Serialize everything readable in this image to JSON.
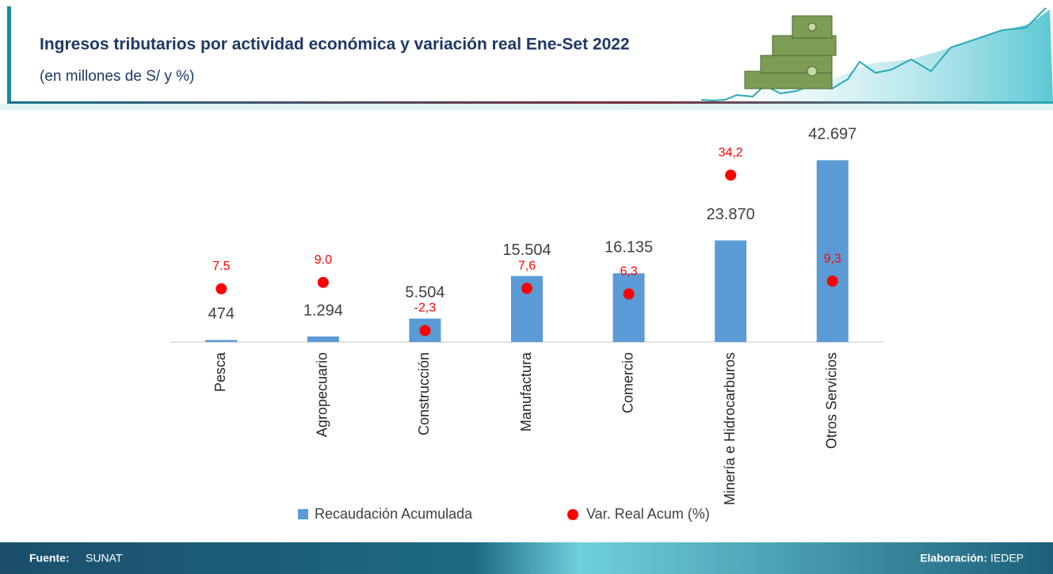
{
  "header": {
    "title": "Ingresos tributarios por actividad económica y variación real  Ene-Set 2022",
    "subtitle": "(en millones de S/ y %)"
  },
  "chart_data": {
    "type": "combo",
    "categories": [
      "Pesca",
      "Agropecuario",
      "Construcción",
      "Manufactura",
      "Comercio",
      "Minería e Hidrocarburos",
      "Otros Servicios"
    ],
    "ylim": [
      0,
      45000
    ],
    "y2lim": [
      -5,
      40
    ],
    "legend": "bottom",
    "series": [
      {
        "name": "Recaudación Acumulada",
        "type": "bar",
        "color": "#5b9bd5",
        "values": [
          474,
          1294,
          5504,
          15504,
          16135,
          23870,
          42697
        ],
        "value_labels": [
          "474",
          "1.294",
          "5.504",
          "15.504",
          "16.135",
          "23.870",
          "42.697"
        ]
      },
      {
        "name": "Var. Real Acum (%)",
        "type": "scatter",
        "axis": "y2",
        "color": "#ff0000",
        "values": [
          7.5,
          9.0,
          -2.3,
          7.6,
          6.3,
          34.2,
          9.3
        ],
        "value_labels": [
          "7.5",
          "9.0",
          "-2,3",
          "7,6",
          "6,3",
          "34,2",
          "9,3"
        ]
      }
    ]
  },
  "footer": {
    "source_label": "Fuente:",
    "source": "SUNAT",
    "credit_label": "Elaboración:",
    "credit": "IEDEP"
  }
}
